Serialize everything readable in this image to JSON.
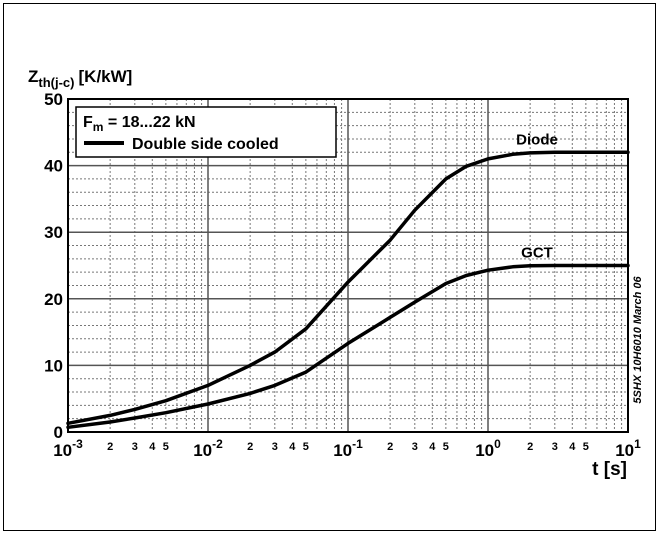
{
  "chart_data": {
    "type": "line",
    "ylabel_main": "Z",
    "ylabel_sub": "th(j-c)",
    "ylabel_unit": "[K/kW]",
    "xlabel": "t [s]",
    "xscale": "log",
    "xlim": [
      0.001,
      10
    ],
    "ylim": [
      0,
      50
    ],
    "grid": true,
    "yticks": [
      "0",
      "10",
      "20",
      "30",
      "40",
      "50"
    ],
    "xticks_major": [
      {
        "base": "10",
        "exp": "-3"
      },
      {
        "base": "10",
        "exp": "-2"
      },
      {
        "base": "10",
        "exp": "-1"
      },
      {
        "base": "10",
        "exp": "0"
      },
      {
        "base": "10",
        "exp": "1"
      }
    ],
    "xticks_minor": [
      "2",
      "3",
      "4",
      "5"
    ],
    "legend": {
      "placement": "top-left",
      "line1_main": "F",
      "line1_sub": "m",
      "line1_rest": " = 18...22 kN",
      "line2": "Double side cooled"
    },
    "watermark": "5SHX 10H6010 March 06",
    "series": [
      {
        "name": "Diode",
        "x": [
          0.001,
          0.002,
          0.003,
          0.005,
          0.01,
          0.02,
          0.03,
          0.05,
          0.1,
          0.2,
          0.3,
          0.5,
          0.7,
          1,
          1.5,
          2,
          3,
          5,
          10
        ],
        "values": [
          1.3,
          2.5,
          3.4,
          4.7,
          7,
          10,
          12,
          15.5,
          22.5,
          28.8,
          33.3,
          38,
          39.9,
          41,
          41.7,
          41.9,
          42,
          42,
          42
        ]
      },
      {
        "name": "GCT",
        "x": [
          0.001,
          0.002,
          0.003,
          0.005,
          0.01,
          0.02,
          0.03,
          0.05,
          0.1,
          0.2,
          0.3,
          0.5,
          0.7,
          1,
          1.5,
          2,
          3,
          5,
          10
        ],
        "values": [
          0.7,
          1.5,
          2.1,
          2.9,
          4.2,
          5.8,
          7,
          9,
          13.3,
          17.2,
          19.5,
          22.3,
          23.5,
          24.3,
          24.8,
          24.95,
          25,
          25,
          25
        ]
      }
    ]
  }
}
